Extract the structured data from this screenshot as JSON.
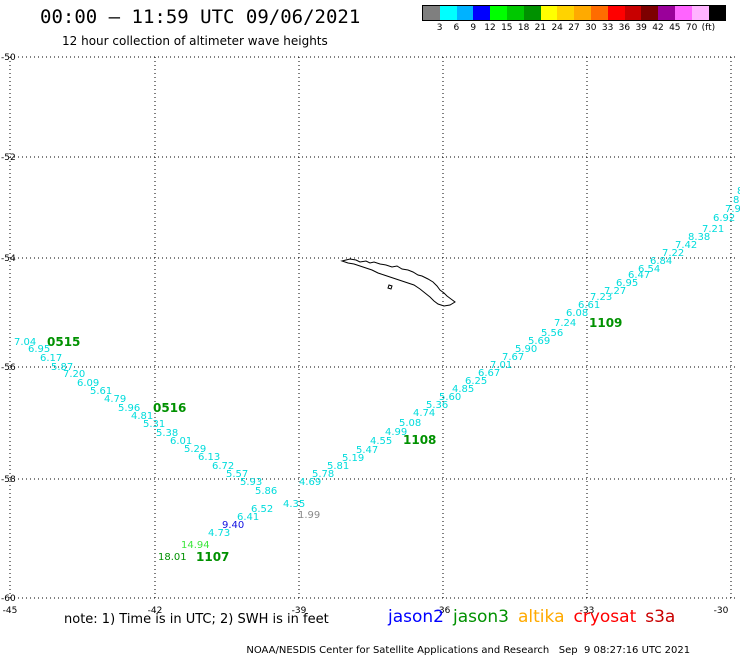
{
  "header": {
    "title": "00:00 – 11:59 UTC 09/06/2021",
    "subtitle": "12 hour collection of altimeter wave heights"
  },
  "color_scale": {
    "unit": "(ft)",
    "colors": [
      "#7f7f7f",
      "#00ffff",
      "#00b2ff",
      "#0000ff",
      "#00ff00",
      "#00c800",
      "#009100",
      "#ffff00",
      "#ffd300",
      "#ffaa00",
      "#ff6c00",
      "#ff0000",
      "#c80000",
      "#7d0000",
      "#9a009a",
      "#ff64ff",
      "#ffb4ff",
      "#000000"
    ],
    "labels": [
      "3",
      "6",
      "9",
      "12",
      "15",
      "18",
      "21",
      "24",
      "27",
      "30",
      "33",
      "36",
      "39",
      "42",
      "45",
      "70"
    ]
  },
  "axes": {
    "lon_ticks": [
      "-45",
      "-42",
      "-39",
      "-36",
      "-33",
      "-30"
    ],
    "lat_ticks": [
      "-50",
      "-52",
      "-54",
      "-56",
      "-58",
      "-60"
    ]
  },
  "wave_heights": [
    {
      "v": "7.04",
      "c": "#00dcdc"
    },
    {
      "v": "6.95",
      "c": "#00dcdc"
    },
    {
      "v": "6.17",
      "c": "#00dcdc"
    },
    {
      "v": "5.87",
      "c": "#00dcdc"
    },
    {
      "v": "7.20",
      "c": "#00dcdc"
    },
    {
      "v": "6.09",
      "c": "#00dcdc"
    },
    {
      "v": "5.61",
      "c": "#00dcdc"
    },
    {
      "v": "4.79",
      "c": "#00dcdc"
    },
    {
      "v": "5.96",
      "c": "#00dcdc"
    },
    {
      "v": "4.81",
      "c": "#00dcdc"
    },
    {
      "v": "5.31",
      "c": "#00dcdc"
    },
    {
      "v": "5.38",
      "c": "#00dcdc"
    },
    {
      "v": "6.01",
      "c": "#00dcdc"
    },
    {
      "v": "5.29",
      "c": "#00dcdc"
    },
    {
      "v": "6.13",
      "c": "#00dcdc"
    },
    {
      "v": "6.72",
      "c": "#00dcdc"
    },
    {
      "v": "5.57",
      "c": "#00dcdc"
    },
    {
      "v": "5.93",
      "c": "#00dcdc"
    },
    {
      "v": "5.86",
      "c": "#00dcdc"
    },
    {
      "v": "4.35",
      "c": "#00dcdc"
    },
    {
      "v": "1.99",
      "c": "#8a8a8a"
    },
    {
      "v": "6.52",
      "c": "#00dcdc"
    },
    {
      "v": "6.41",
      "c": "#00dcdc"
    },
    {
      "v": "9.40",
      "c": "#1010e0"
    },
    {
      "v": "4.73",
      "c": "#00dcdc"
    },
    {
      "v": "14.94",
      "c": "#3ce63c"
    },
    {
      "v": "18.01",
      "c": "#009100"
    },
    {
      "v": "4.69",
      "c": "#00dcdc"
    },
    {
      "v": "5.78",
      "c": "#00dcdc"
    },
    {
      "v": "5.81",
      "c": "#00dcdc"
    },
    {
      "v": "5.19",
      "c": "#00dcdc"
    },
    {
      "v": "5.47",
      "c": "#00dcdc"
    },
    {
      "v": "4.55",
      "c": "#00dcdc"
    },
    {
      "v": "4.99",
      "c": "#00dcdc"
    },
    {
      "v": "5.08",
      "c": "#00dcdc"
    },
    {
      "v": "4.74",
      "c": "#00dcdc"
    },
    {
      "v": "5.36",
      "c": "#00dcdc"
    },
    {
      "v": "5.60",
      "c": "#00dcdc"
    },
    {
      "v": "4.85",
      "c": "#00dcdc"
    },
    {
      "v": "6.25",
      "c": "#00dcdc"
    },
    {
      "v": "6.67",
      "c": "#00dcdc"
    },
    {
      "v": "7.01",
      "c": "#00dcdc"
    },
    {
      "v": "7.67",
      "c": "#00dcdc"
    },
    {
      "v": "5.90",
      "c": "#00dcdc"
    },
    {
      "v": "5.69",
      "c": "#00dcdc"
    },
    {
      "v": "5.56",
      "c": "#00dcdc"
    },
    {
      "v": "7.24",
      "c": "#00dcdc"
    },
    {
      "v": "6.08",
      "c": "#00dcdc"
    },
    {
      "v": "6.61",
      "c": "#00dcdc"
    },
    {
      "v": "7.23",
      "c": "#00dcdc"
    },
    {
      "v": "7.27",
      "c": "#00dcdc"
    },
    {
      "v": "6.95",
      "c": "#00dcdc"
    },
    {
      "v": "6.47",
      "c": "#00dcdc"
    },
    {
      "v": "6.54",
      "c": "#00dcdc"
    },
    {
      "v": "6.84",
      "c": "#00dcdc"
    },
    {
      "v": "7.22",
      "c": "#00dcdc"
    },
    {
      "v": "7.42",
      "c": "#00dcdc"
    },
    {
      "v": "8.38",
      "c": "#00dcdc"
    },
    {
      "v": "7.21",
      "c": "#00dcdc"
    },
    {
      "v": "6.92",
      "c": "#00dcdc"
    },
    {
      "v": "7.94",
      "c": "#00dcdc"
    },
    {
      "v": "8.5",
      "c": "#00dcdc"
    },
    {
      "v": "8",
      "c": "#00dcdc"
    }
  ],
  "pass_labels": [
    {
      "text": "0515",
      "color": "#009100"
    },
    {
      "text": "0516",
      "color": "#009100"
    },
    {
      "text": "1107",
      "color": "#009100"
    },
    {
      "text": "1108",
      "color": "#009100"
    },
    {
      "text": "1109",
      "color": "#009100"
    }
  ],
  "notes": {
    "text": "note: 1) Time is in UTC; 2) SWH is in feet"
  },
  "satellites": [
    {
      "name": "jason2",
      "color": "#0000ff"
    },
    {
      "name": "jason3",
      "color": "#009100"
    },
    {
      "name": "altika",
      "color": "#ffaa00"
    },
    {
      "name": "cryosat",
      "color": "#ff0000"
    },
    {
      "name": "s3a",
      "color": "#c80000"
    }
  ],
  "footer": {
    "credit": "NOAA/NESDIS Center for Satellite Applications and Research",
    "timestamp": "Sep  9 08:27:16 UTC 2021"
  }
}
